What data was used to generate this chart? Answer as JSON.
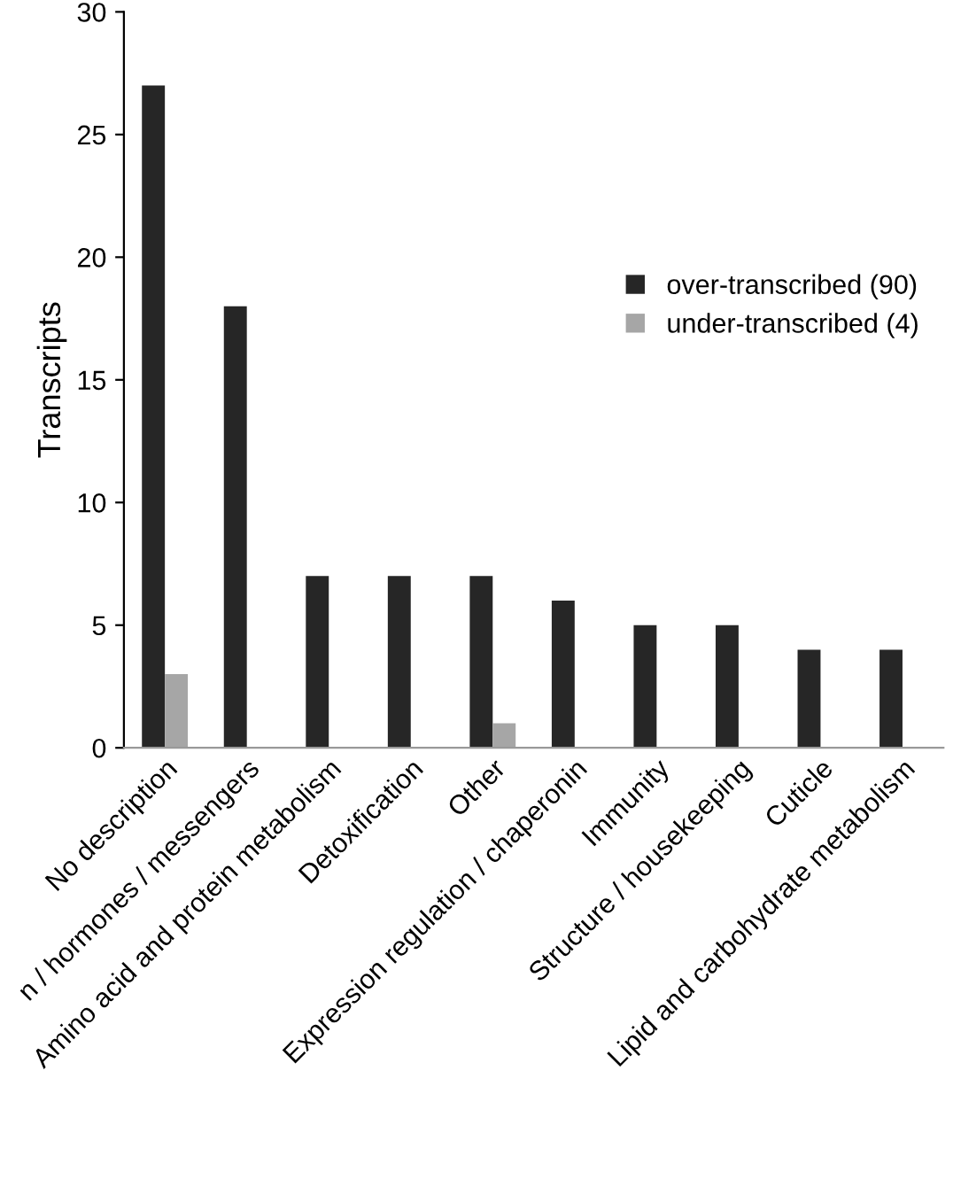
{
  "chart_data": {
    "type": "bar",
    "ylabel": "Transcripts",
    "categories": [
      "No description",
      "n / hormones / messengers",
      "Amino acid and protein metabolism",
      "Detoxification",
      "Other",
      "Expression regulation / chaperonin",
      "Immunity",
      "Structure / housekeeping",
      "Cuticle",
      "Lipid and carbohydrate metabolism"
    ],
    "series": [
      {
        "name": "over-transcribed (90)",
        "color": "#262626",
        "values": [
          27,
          18,
          7,
          7,
          7,
          6,
          5,
          5,
          4,
          4
        ]
      },
      {
        "name": "under-transcribed (4)",
        "color": "#a6a6a6",
        "values": [
          3,
          null,
          null,
          null,
          1,
          null,
          null,
          null,
          null,
          null
        ]
      }
    ],
    "ylim": [
      0,
      30
    ],
    "yticks": [
      0,
      5,
      10,
      15,
      20,
      25,
      30
    ],
    "grid": false,
    "legend": "right"
  }
}
